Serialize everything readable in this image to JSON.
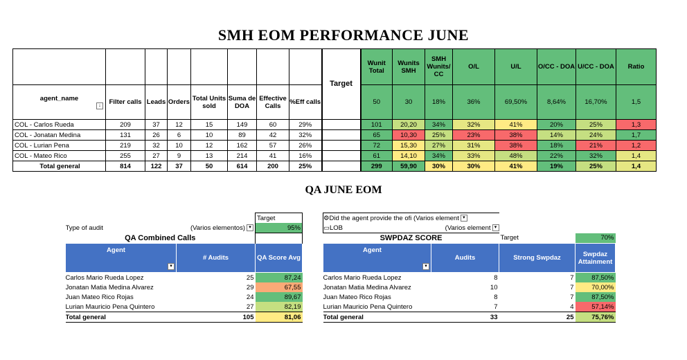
{
  "title": "SMH EOM PERFORMANCE JUNE",
  "qa_title": "QA JUNE EOM",
  "main_table": {
    "headers_left": [
      "agent_name",
      "Filter calls",
      "Leads",
      "Orders",
      "Total Units sold",
      "Suma de DOA",
      "Effective Calls",
      "%Eff calls"
    ],
    "target_label": "Target",
    "headers_right": [
      "Wunit Total",
      "Wunits SMH",
      "SMH Wunits/ CC",
      "O/L",
      "U/L",
      "O/CC - DOA",
      "U/CC - DOA",
      "Ratio"
    ],
    "target_values": [
      "50",
      "30",
      "18%",
      "36%",
      "69,50%",
      "8,64%",
      "16,70%",
      "1,5"
    ],
    "rows": [
      {
        "agent": "COL - Carlos Rueda",
        "left": [
          "209",
          "37",
          "12",
          "15",
          "149",
          "60",
          "29%"
        ],
        "right": [
          "101",
          "20,20",
          "34%",
          "32%",
          "41%",
          "20%",
          "25%",
          "1,3"
        ]
      },
      {
        "agent": "COL - Jonatan Medina",
        "left": [
          "131",
          "26",
          "6",
          "10",
          "89",
          "42",
          "32%"
        ],
        "right": [
          "65",
          "10,30",
          "25%",
          "23%",
          "38%",
          "14%",
          "24%",
          "1,7"
        ]
      },
      {
        "agent": "COL - Lurian Pena",
        "left": [
          "219",
          "32",
          "10",
          "12",
          "162",
          "57",
          "26%"
        ],
        "right": [
          "72",
          "15,30",
          "27%",
          "31%",
          "38%",
          "18%",
          "21%",
          "1,2"
        ]
      },
      {
        "agent": "COL - Mateo Rico",
        "left": [
          "255",
          "27",
          "9",
          "13",
          "214",
          "41",
          "16%"
        ],
        "right": [
          "61",
          "14,10",
          "34%",
          "33%",
          "48%",
          "22%",
          "32%",
          "1,4"
        ]
      }
    ],
    "total": {
      "agent": "Total general",
      "left": [
        "814",
        "122",
        "37",
        "50",
        "614",
        "200",
        "25%"
      ],
      "right": [
        "299",
        "59,90",
        "30%",
        "30%",
        "41%",
        "19%",
        "25%",
        "1,4"
      ]
    }
  },
  "qa_left": {
    "target_label": "Target",
    "filter_label": "Type of audit",
    "filter_value": "(Varios elementos)",
    "target_value": "95%",
    "table_title": "QA Combined Calls",
    "headers": [
      "Agent",
      "# Audits",
      "QA Score Avg"
    ],
    "rows": [
      {
        "agent": "Carlos Mario Rueda Lopez",
        "audits": "25",
        "score": "87,24"
      },
      {
        "agent": "Jonatan Matia Medina Alvarez",
        "audits": "29",
        "score": "67,55"
      },
      {
        "agent": "Juan Mateo Rico Rojas",
        "audits": "24",
        "score": "89,67"
      },
      {
        "agent": "Lurian Mauricio Pena Quintero",
        "audits": "27",
        "score": "82,19"
      }
    ],
    "total": {
      "agent": "Total general",
      "audits": "105",
      "score": "81,06"
    }
  },
  "qa_right": {
    "filter1_label": "Did the agent provide the ofi",
    "filter1_value": "(Varios element",
    "filter2_label": "LOB",
    "filter2_value": "(Varios element",
    "table_title": "SWPDAZ SCORE",
    "target_label": "Target",
    "target_value": "70%",
    "headers": [
      "Agent",
      "Audits",
      "Strong Swpdaz",
      "Swpdaz Attainment"
    ],
    "rows": [
      {
        "agent": "Carlos Mario Rueda Lopez",
        "audits": "8",
        "strong": "7",
        "att": "87,50%"
      },
      {
        "agent": "Jonatan Matia Medina Alvarez",
        "audits": "10",
        "strong": "7",
        "att": "70,00%"
      },
      {
        "agent": "Juan Mateo Rico Rojas",
        "audits": "8",
        "strong": "7",
        "att": "87,50%"
      },
      {
        "agent": "Lurian Mauricio Pena Quintero",
        "audits": "7",
        "strong": "4",
        "att": "57,14%"
      }
    ],
    "total": {
      "agent": "Total general",
      "audits": "33",
      "strong": "25",
      "att": "75,76%"
    }
  }
}
